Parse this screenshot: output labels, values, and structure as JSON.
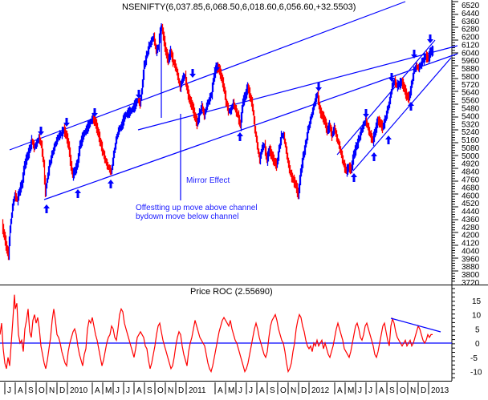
{
  "chart_data": [
    {
      "type": "ohlc",
      "title": "NSENIFTY(6,037.85,6,068.50,6,018.60,6,056.60,+32.5503)",
      "symbol": "NSENIFTY",
      "last": {
        "open": 6037.85,
        "high": 6068.5,
        "low": 6018.6,
        "close": 6056.6,
        "change": 32.5503
      },
      "ylim": [
        3720,
        6560
      ],
      "yticks": [
        6520,
        6440,
        6360,
        6280,
        6200,
        6120,
        6040,
        5960,
        5880,
        5800,
        5720,
        5640,
        5560,
        5480,
        5400,
        5320,
        5240,
        5160,
        5080,
        5000,
        4920,
        4840,
        4760,
        4680,
        4600,
        4520,
        4440,
        4360,
        4280,
        4200,
        4120,
        4040,
        3960,
        3880,
        3800,
        3720
      ],
      "up_color": "#0000ff",
      "down_color": "#ff0000",
      "series_approx": [
        {
          "x": "2009-07",
          "y": 4300
        },
        {
          "x": "2009-08",
          "y": 4580
        },
        {
          "x": "2009-09",
          "y": 5000
        },
        {
          "x": "2009-10",
          "y": 5100
        },
        {
          "x": "2009-11",
          "y": 4600
        },
        {
          "x": "2009-12",
          "y": 5150
        },
        {
          "x": "2010-01",
          "y": 5250
        },
        {
          "x": "2010-02",
          "y": 4800
        },
        {
          "x": "2010-03",
          "y": 5250
        },
        {
          "x": "2010-04",
          "y": 5350
        },
        {
          "x": "2010-05",
          "y": 4900
        },
        {
          "x": "2010-06",
          "y": 5300
        },
        {
          "x": "2010-07",
          "y": 5400
        },
        {
          "x": "2010-08",
          "y": 5500
        },
        {
          "x": "2010-09",
          "y": 6000
        },
        {
          "x": "2010-10",
          "y": 6200
        },
        {
          "x": "2010-11",
          "y": 6300
        },
        {
          "x": "2010-12",
          "y": 5900
        },
        {
          "x": "2011-01",
          "y": 5550
        },
        {
          "x": "2011-02",
          "y": 5350
        },
        {
          "x": "2011-03",
          "y": 5500
        },
        {
          "x": "2011-04",
          "y": 5900
        },
        {
          "x": "2011-05",
          "y": 5500
        },
        {
          "x": "2011-06",
          "y": 5400
        },
        {
          "x": "2011-07",
          "y": 5700
        },
        {
          "x": "2011-08",
          "y": 5000
        },
        {
          "x": "2011-09",
          "y": 5050
        },
        {
          "x": "2011-10",
          "y": 5100
        },
        {
          "x": "2011-11",
          "y": 4800
        },
        {
          "x": "2011-12",
          "y": 4650
        },
        {
          "x": "2012-01",
          "y": 5150
        },
        {
          "x": "2012-02",
          "y": 5450
        },
        {
          "x": "2012-03",
          "y": 5300
        },
        {
          "x": "2012-04",
          "y": 5250
        },
        {
          "x": "2012-05",
          "y": 4900
        },
        {
          "x": "2012-06",
          "y": 5200
        },
        {
          "x": "2012-07",
          "y": 5250
        },
        {
          "x": "2012-08",
          "y": 5350
        },
        {
          "x": "2012-09",
          "y": 5700
        },
        {
          "x": "2012-10",
          "y": 5700
        },
        {
          "x": "2012-11",
          "y": 5800
        },
        {
          "x": "2012-12",
          "y": 5900
        },
        {
          "x": "2013-01",
          "y": 6056
        }
      ],
      "annotations": [
        {
          "text": "Mirror Effect"
        },
        {
          "text": "Offestting up move above channel"
        },
        {
          "text": "bydown move below channel"
        }
      ],
      "trendlines": "upper channel, lower channel, mid channel, rising short-term channel (2012), vertical 'mirror effect' marker"
    },
    {
      "type": "line",
      "title": "Price ROC (2.55690)",
      "ylim": [
        -12,
        18
      ],
      "yticks": [
        15,
        10,
        5,
        0,
        -5,
        -10
      ],
      "series": [
        {
          "name": "Price ROC",
          "color": "#ff0000"
        }
      ],
      "zero_line_color": "#0000ff",
      "trendline": "descending line from ~8.5 (Sep 2012) to ~4 (Jan 2013)"
    }
  ],
  "x_axis": {
    "labels": [
      "J",
      "A",
      "S",
      "O",
      "N",
      "D",
      "2010",
      "A",
      "M",
      "J",
      "J",
      "A",
      "S",
      "O",
      "N",
      "D",
      "2011",
      "A",
      "M",
      "J",
      "J",
      "A",
      "S",
      "O",
      "N",
      "D",
      "2012",
      "A",
      "M",
      "J",
      "J",
      "A",
      "S",
      "O",
      "N",
      "D",
      "2013"
    ],
    "positions": [
      9,
      22,
      35,
      48,
      61,
      74,
      87,
      118,
      131,
      144,
      157,
      170,
      183,
      196,
      209,
      222,
      235,
      271,
      284,
      297,
      310,
      323,
      336,
      349,
      362,
      375,
      388,
      420,
      433,
      446,
      459,
      472,
      485,
      498,
      511,
      524,
      537
    ]
  },
  "labels": {
    "title": "NSENIFTY(6,037.85,6,068.50,6,018.60,6,056.60,+32.5503)",
    "roc_title": "Price ROC (2.55690)",
    "mirror": "Mirror Effect",
    "offset1": "Offestting up move above channel",
    "offset2": "bydown move below channel"
  }
}
